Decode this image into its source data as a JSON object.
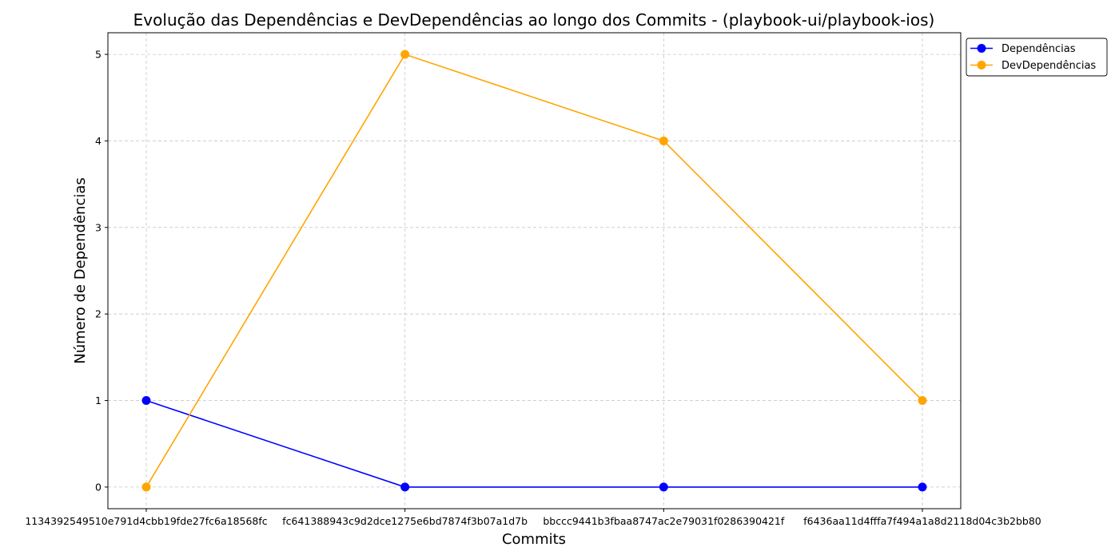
{
  "chart_data": {
    "type": "line",
    "title": "Evolução das Dependências e DevDependências ao longo dos Commits - (playbook-ui/playbook-ios)",
    "xlabel": "Commits",
    "ylabel": "Número de Dependências",
    "categories": [
      "1134392549510e791d4cbb19fde27fc6a18568fc",
      "fc641388943c9d2dce1275e6bd7874f3b07a1d7b",
      "bbccc9441b3fbaa8747ac2e79031f0286390421f",
      "f6436aa11d4fffa7f494a1a8d2118d04c3b2bb80"
    ],
    "series": [
      {
        "name": "Dependências",
        "values": [
          1,
          0,
          0,
          0
        ],
        "color": "#0000ff"
      },
      {
        "name": "DevDependências",
        "values": [
          0,
          5,
          4,
          1
        ],
        "color": "#ffa500"
      }
    ],
    "yticks": [
      0,
      1,
      2,
      3,
      4,
      5
    ],
    "ylim": [
      -0.25,
      5.25
    ],
    "grid": true,
    "legend_position": "outside-top-right"
  }
}
